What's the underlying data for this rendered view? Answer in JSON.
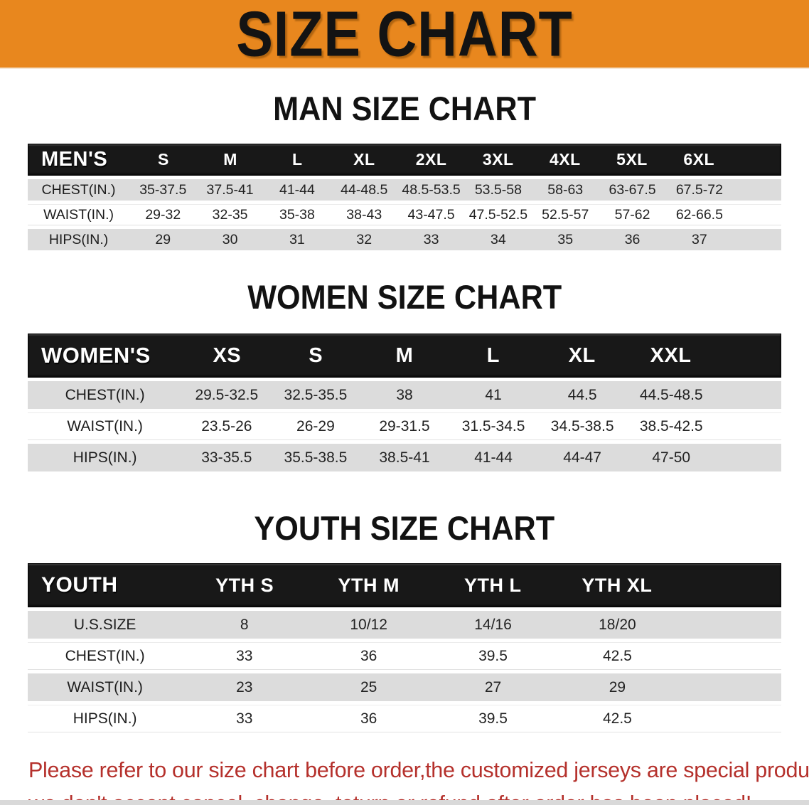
{
  "banner": {
    "title": "SIZE CHART",
    "bg_color": "#E8871E",
    "text_color": "#131313"
  },
  "sections": [
    {
      "heading": "MAN SIZE CHART",
      "label": "MEN'S",
      "columns": [
        "S",
        "M",
        "L",
        "XL",
        "2XL",
        "3XL",
        "4XL",
        "5XL",
        "6XL"
      ],
      "rows": [
        {
          "label": "CHEST(IN.)",
          "values": [
            "35-37.5",
            "37.5-41",
            "41-44",
            "44-48.5",
            "48.5-53.5",
            "53.5-58",
            "58-63",
            "63-67.5",
            "67.5-72"
          ]
        },
        {
          "label": "WAIST(IN.)",
          "values": [
            "29-32",
            "32-35",
            "35-38",
            "38-43",
            "43-47.5",
            "47.5-52.5",
            "52.5-57",
            "57-62",
            "62-66.5"
          ]
        },
        {
          "label": "HIPS(IN.)",
          "values": [
            "29",
            "30",
            "31",
            "32",
            "33",
            "34",
            "35",
            "36",
            "37"
          ]
        }
      ]
    },
    {
      "heading": "WOMEN SIZE CHART",
      "label": "WOMEN'S",
      "columns": [
        "XS",
        "S",
        "M",
        "L",
        "XL",
        "XXL"
      ],
      "rows": [
        {
          "label": "CHEST(IN.)",
          "values": [
            "29.5-32.5",
            "32.5-35.5",
            "38",
            "41",
            "44.5",
            "44.5-48.5"
          ]
        },
        {
          "label": "WAIST(IN.)",
          "values": [
            "23.5-26",
            "26-29",
            "29-31.5",
            "31.5-34.5",
            "34.5-38.5",
            "38.5-42.5"
          ]
        },
        {
          "label": "HIPS(IN.)",
          "values": [
            "33-35.5",
            "35.5-38.5",
            "38.5-41",
            "41-44",
            "44-47",
            "47-50"
          ]
        }
      ]
    },
    {
      "heading": "YOUTH SIZE CHART",
      "label": "YOUTH",
      "columns": [
        "YTH S",
        "YTH M",
        "YTH L",
        "YTH XL"
      ],
      "rows": [
        {
          "label": "U.S.SIZE",
          "values": [
            "8",
            "10/12",
            "14/16",
            "18/20"
          ]
        },
        {
          "label": "CHEST(IN.)",
          "values": [
            "33",
            "36",
            "39.5",
            "42.5"
          ]
        },
        {
          "label": "WAIST(IN.)",
          "values": [
            "23",
            "25",
            "27",
            "29"
          ]
        },
        {
          "label": "HIPS(IN.)",
          "values": [
            "33",
            "36",
            "39.5",
            "42.5"
          ]
        }
      ]
    }
  ],
  "disclaimer": {
    "line1": "Please refer to our size chart before order,the customized jerseys are special products,",
    "line2": "we don't accept cancel, change, teturn or refund after order has been placed!",
    "text_color": "#B5312C"
  },
  "table_colors": {
    "header_bg": "#181818",
    "header_text": "#FFFFFF",
    "row_gray": "#DCDCDC",
    "row_white": "#FFFFFF"
  }
}
